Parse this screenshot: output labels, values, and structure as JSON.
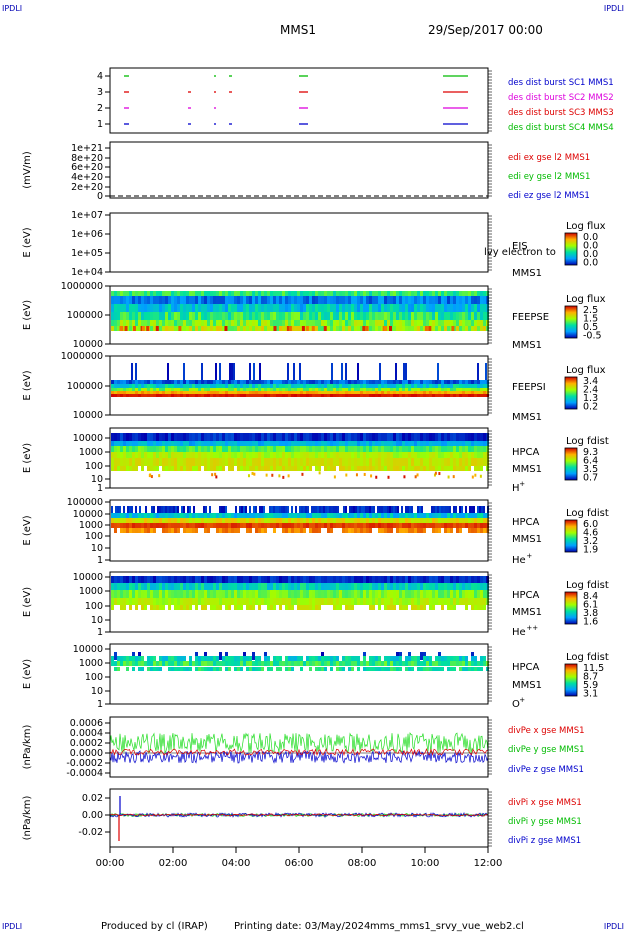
{
  "header": {
    "corner_tl": "IPDLI",
    "corner_tr": "IPDLI",
    "corner_bl": "IPDLI",
    "corner_br": "IPDLI",
    "mission": "MMS1",
    "datetime": "29/Sep/2017 00:00"
  },
  "footer": {
    "produced_by": "Produced by cl (IRAP)",
    "printing_date": "Printing date: 03/May/2024",
    "script": "mms_mms1_srvy_vue_web2.cl"
  },
  "colors": {
    "blue": "#0000cc",
    "magenta": "#dd00dd",
    "red": "#dd0000",
    "green": "#00bb00",
    "lightgreen": "#22dd22"
  },
  "chart_data": {
    "type": "multi-panel-timeseries",
    "x_ticks": [
      "00:00",
      "02:00",
      "04:00",
      "06:00",
      "08:00",
      "10:00",
      "12:00"
    ],
    "xlim": [
      "00:00",
      "12:00"
    ],
    "panels": [
      {
        "id": "burst",
        "ylabel": "",
        "yticks": [
          "4",
          "3",
          "2",
          "1"
        ],
        "legend": [
          {
            "text": "des dist burst SC1 MMS1",
            "color": "#0000cc"
          },
          {
            "text": "des dist burst SC2 MMS2",
            "color": "#dd00dd"
          },
          {
            "text": "des dist burst SC3 MMS3",
            "color": "#dd0000"
          },
          {
            "text": "des dist burst SC4 MMS4",
            "color": "#00bb00"
          }
        ]
      },
      {
        "id": "edi",
        "ylabel": "(mV/m)",
        "yticks": [
          "1e+21",
          "8e+20",
          "6e+20",
          "4e+20",
          "2e+20",
          "0"
        ],
        "legend": [
          {
            "text": "edi ex gse l2 MMS1",
            "color": "#dd0000"
          },
          {
            "text": "edi ey gse l2 MMS1",
            "color": "#00bb00"
          },
          {
            "text": "edi ez gse l2 MMS1",
            "color": "#0000cc"
          }
        ]
      },
      {
        "id": "eis",
        "ylabel": "E (eV)",
        "yticks": [
          "1e+07",
          "1e+06",
          "1e+05",
          "1e+04"
        ],
        "labels": [
          "EIS",
          "MMS1"
        ],
        "overlay": "lvy electron to",
        "cbar_title": "Log flux",
        "cbar_ticks": [
          "0.0",
          "0.0",
          "0.0",
          "0.0"
        ]
      },
      {
        "id": "feepse",
        "ylabel": "E (eV)",
        "yticks": [
          "1000000",
          "100000",
          "10000"
        ],
        "labels": [
          "FEEPSE",
          "MMS1"
        ],
        "cbar_title": "Log flux",
        "cbar_ticks": [
          "2.5",
          "1.5",
          "0.5",
          "-0.5"
        ]
      },
      {
        "id": "feepsi",
        "ylabel": "E (eV)",
        "yticks": [
          "1000000",
          "100000",
          "10000"
        ],
        "labels": [
          "FEEPSI",
          "MMS1"
        ],
        "cbar_title": "Log flux",
        "cbar_ticks": [
          "3.4",
          "2.4",
          "1.3",
          "0.2"
        ]
      },
      {
        "id": "hpca_h",
        "ylabel": "E (eV)",
        "yticks": [
          "10000",
          "1000",
          "100",
          "10",
          "1"
        ],
        "labels": [
          "HPCA",
          "MMS1",
          "H"
        ],
        "species_sup": "+",
        "cbar_title": "Log fdist",
        "cbar_ticks": [
          "9.3",
          "6.4",
          "3.5",
          "0.7"
        ]
      },
      {
        "id": "hpca_he",
        "ylabel": "E (eV)",
        "yticks": [
          "100000",
          "10000",
          "1000",
          "100",
          "10",
          "1"
        ],
        "labels": [
          "HPCA",
          "MMS1",
          "He"
        ],
        "species_sup": "+",
        "cbar_title": "Log fdist",
        "cbar_ticks": [
          "6.0",
          "4.6",
          "3.2",
          "1.9"
        ]
      },
      {
        "id": "hpca_hepp",
        "ylabel": "E (eV)",
        "yticks": [
          "10000",
          "1000",
          "100",
          "10",
          "1"
        ],
        "labels": [
          "HPCA",
          "MMS1",
          "He"
        ],
        "species_sup": "++",
        "cbar_title": "Log fdist",
        "cbar_ticks": [
          "8.4",
          "6.1",
          "3.8",
          "1.6"
        ]
      },
      {
        "id": "hpca_o",
        "ylabel": "E (eV)",
        "yticks": [
          "10000",
          "1000",
          "100",
          "10",
          "1"
        ],
        "labels": [
          "HPCA",
          "MMS1",
          "O"
        ],
        "species_sup": "+",
        "cbar_title": "Log fdist",
        "cbar_ticks": [
          "11.5",
          "8.7",
          "5.9",
          "3.1"
        ]
      },
      {
        "id": "divpe",
        "ylabel": "(nPa/km)",
        "yticks": [
          "0.0006",
          "0.0004",
          "0.0002",
          "0.0000",
          "-0.0002",
          "-0.0004"
        ],
        "ylim": [
          -0.0004,
          0.0007
        ],
        "legend": [
          {
            "text": "divPe x gse MMS1",
            "color": "#dd0000"
          },
          {
            "text": "divPe y gse MMS1",
            "color": "#00bb00"
          },
          {
            "text": "divPe z gse MMS1",
            "color": "#0000cc"
          }
        ]
      },
      {
        "id": "divpi",
        "ylabel": "(nPa/km)",
        "yticks": [
          "0.02",
          "0.00",
          "-0.02"
        ],
        "ylim": [
          -0.04,
          0.03
        ],
        "legend": [
          {
            "text": "divPi x gse MMS1",
            "color": "#dd0000"
          },
          {
            "text": "divPi y gse MMS1",
            "color": "#00bb00"
          },
          {
            "text": "divPi z gse MMS1",
            "color": "#0000cc"
          }
        ]
      }
    ]
  }
}
